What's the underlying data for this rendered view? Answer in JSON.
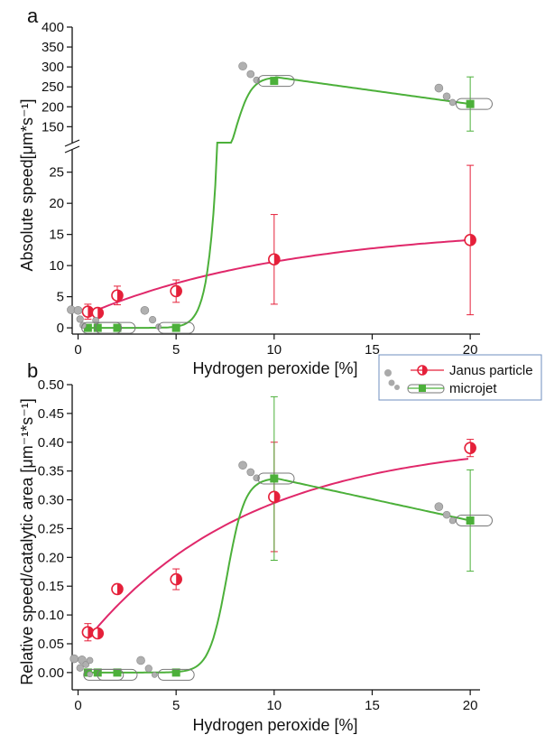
{
  "colors": {
    "janus": "#e5203a",
    "microjet": "#4cb03a",
    "janus_line": "#e0286a",
    "axis": "#111111"
  },
  "chart_data": [
    {
      "panel": "a",
      "type": "line",
      "xlabel": "Hydrogen peroxide [%]",
      "ylabel": "Absolute speed[μm*s⁻¹]",
      "xlim": [
        -0.3,
        20.5
      ],
      "x_ticks": [
        0,
        5,
        10,
        15,
        20
      ],
      "y_break": true,
      "y_lower_lim": [
        -1,
        28
      ],
      "y_lower_ticks": [
        0,
        5,
        10,
        15,
        20,
        25
      ],
      "y_upper_lim": [
        110,
        400
      ],
      "y_upper_ticks": [
        150,
        200,
        250,
        300,
        350,
        400
      ],
      "series": [
        {
          "name": "Janus particle",
          "x": [
            0.5,
            1,
            2,
            5,
            10,
            20
          ],
          "y": [
            2.6,
            2.4,
            5.2,
            5.9,
            11.0,
            14.1
          ],
          "err": [
            1.2,
            0.6,
            1.5,
            1.8,
            7.2,
            12.0
          ]
        },
        {
          "name": "microjet",
          "x": [
            0.5,
            1,
            2,
            5,
            10,
            20
          ],
          "y": [
            0,
            0,
            0,
            0,
            265,
            207
          ],
          "err": [
            0,
            0,
            0,
            0,
            0,
            68
          ]
        }
      ]
    },
    {
      "panel": "b",
      "type": "line",
      "xlabel": "Hydrogen peroxide [%]",
      "ylabel": "Relative speed/catalytic area [μm⁻¹*s⁻¹]",
      "xlim": [
        -0.3,
        20.5
      ],
      "x_ticks": [
        0,
        5,
        10,
        15,
        20
      ],
      "ylim": [
        -0.03,
        0.5
      ],
      "y_ticks": [
        0.0,
        0.05,
        0.1,
        0.15,
        0.2,
        0.25,
        0.3,
        0.35,
        0.4,
        0.45,
        0.5
      ],
      "series": [
        {
          "name": "Janus particle",
          "x": [
            0.5,
            1,
            2,
            5,
            10,
            20
          ],
          "y": [
            0.07,
            0.068,
            0.145,
            0.162,
            0.305,
            0.39
          ],
          "err": [
            0.015,
            0.007,
            0.008,
            0.018,
            0.095,
            0.015
          ]
        },
        {
          "name": "microjet",
          "x": [
            0.5,
            1,
            2,
            5,
            10,
            20
          ],
          "y": [
            0,
            0,
            0,
            0,
            0.337,
            0.264
          ],
          "err": [
            0,
            0,
            0,
            0,
            0.142,
            0.088
          ]
        }
      ]
    }
  ]
}
